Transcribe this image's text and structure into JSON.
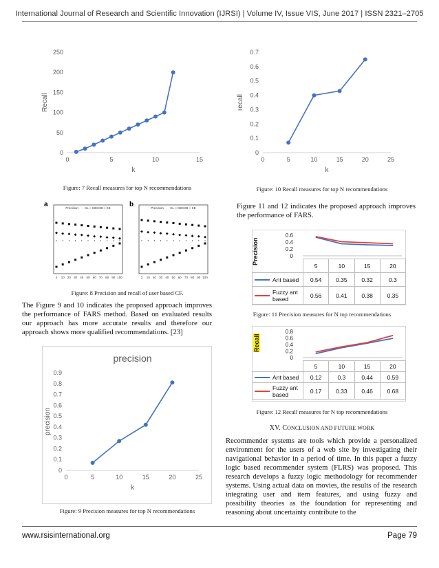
{
  "header": "International Journal of Research and Scientific Innovation (IJRSI) | Volume IV, Issue VIS, June 2017 | ISSN 2321–2705",
  "captions": {
    "fig7": "Figure: 7 Recall measures for top N recommendations",
    "fig8": "Figure: 8 Precision and recall of user based CF.",
    "fig9": "Figure: 9 Precision measures for top N recommendations",
    "fig10": "Figure: 10 Recall measures for top N recommendations",
    "fig11": "Figure: 11 Precision measures for N top recommendations",
    "fig12": "Figure: 12 Recall measures for N top recommendations"
  },
  "paragraphs": {
    "left1": "The Figure 9 and 10 indicates the proposed approach improves the performance of FARS method. Based on evaluated results our approach has more accurate results and therefore our approach shows more qualified recommendations. [23]",
    "right1": "Figure 11 and 12 indicates the proposed approach improves the performance of FARS.",
    "right2": "Recommender systems are tools which provide a personalized environment for the users of a web site by investigating their navigational behavior in a period of time. In this paper a fuzzy logic based recommender system (FLRS) was proposed. This research develops a fuzzy logic methodology for recommender systems. Using actual data on movies, the results of the research integrating user and item features, and using fuzzy and possibility theories as the foundation for representing and reasoning about uncertainty contribute to the"
  },
  "section": {
    "number": "XV.",
    "first": "C",
    "rest": "ONCLUSION AND FUTURE WORK"
  },
  "footer": {
    "website": "www.rsisinternational.org",
    "page": "Page 79"
  },
  "fig8": {
    "panel_a": "a",
    "panel_b": "b",
    "legend": "Precision · · · KL  ━  ISEC08  ━  KE",
    "x_ticks": [
      "2",
      "10",
      "20",
      "30",
      "40",
      "50",
      "60",
      "70",
      "80",
      "90",
      "100"
    ]
  },
  "chart_data": [
    {
      "id": "fig7",
      "type": "line",
      "title": "",
      "xlabel": "k",
      "ylabel": "Recall",
      "xlim": [
        0,
        15
      ],
      "ylim": [
        0,
        250
      ],
      "xticks": [
        0,
        5,
        10,
        15
      ],
      "yticks": [
        0,
        50,
        100,
        150,
        200,
        250
      ],
      "series": [
        {
          "x": [
            1,
            2,
            3,
            4,
            5,
            6,
            7,
            8,
            9,
            10,
            11,
            12
          ],
          "y": [
            2,
            10,
            20,
            30,
            40,
            50,
            60,
            70,
            80,
            90,
            100,
            200
          ]
        }
      ],
      "color": "#4472C4",
      "grid": false
    },
    {
      "id": "fig10",
      "type": "line",
      "title": "",
      "xlabel": "k",
      "ylabel": "recall",
      "xlim": [
        0,
        25
      ],
      "ylim": [
        0,
        0.7
      ],
      "xticks": [
        0,
        5,
        10,
        15,
        20,
        25
      ],
      "yticks": [
        0,
        0.1,
        0.2,
        0.3,
        0.4,
        0.5,
        0.6,
        0.7
      ],
      "series": [
        {
          "x": [
            5,
            10,
            15,
            20
          ],
          "y": [
            0.07,
            0.4,
            0.43,
            0.65
          ]
        }
      ],
      "color": "#4472C4",
      "grid": false
    },
    {
      "id": "fig9",
      "type": "line",
      "title": "precision",
      "xlabel": "k",
      "ylabel": "precision",
      "xlim": [
        0,
        25
      ],
      "ylim": [
        0,
        0.9
      ],
      "xticks": [
        0,
        5,
        10,
        15,
        20,
        25
      ],
      "yticks": [
        0,
        0.1,
        0.2,
        0.3,
        0.4,
        0.5,
        0.6,
        0.7,
        0.8,
        0.9
      ],
      "series": [
        {
          "x": [
            5,
            10,
            15,
            20
          ],
          "y": [
            0.07,
            0.27,
            0.42,
            0.81
          ]
        }
      ],
      "color": "#4472C4",
      "grid": false
    },
    {
      "id": "fig11",
      "type": "line",
      "title": "",
      "ylabel": "Precision",
      "ylim": [
        0,
        0.6
      ],
      "yticks": [
        "0",
        "0.2",
        "0.4",
        "0.6"
      ],
      "categories": [
        "5",
        "10",
        "15",
        "20"
      ],
      "series": [
        {
          "name": "Ant based",
          "values": [
            "0.54",
            "0.35",
            "0.32",
            "0.3"
          ],
          "color": "#4472C4"
        },
        {
          "name": "Fuzzy ant based",
          "values": [
            "0.56",
            "0.41",
            "0.38",
            "0.35"
          ],
          "color": "#E0413A"
        }
      ]
    },
    {
      "id": "fig12",
      "type": "line",
      "title": "",
      "ylabel": "Recall",
      "ylim": [
        0,
        0.8
      ],
      "yticks": [
        "0",
        "0.2",
        "0.4",
        "0.6",
        "0.8"
      ],
      "categories": [
        "5",
        "10",
        "15",
        "20"
      ],
      "series": [
        {
          "name": "Ant based",
          "values": [
            "0.12",
            "0.3",
            "0.44",
            "0.59"
          ],
          "color": "#4472C4"
        },
        {
          "name": "Fuzzy ant based",
          "values": [
            "0.17",
            "0.33",
            "0.46",
            "0.68"
          ],
          "color": "#E0413A"
        }
      ]
    }
  ]
}
